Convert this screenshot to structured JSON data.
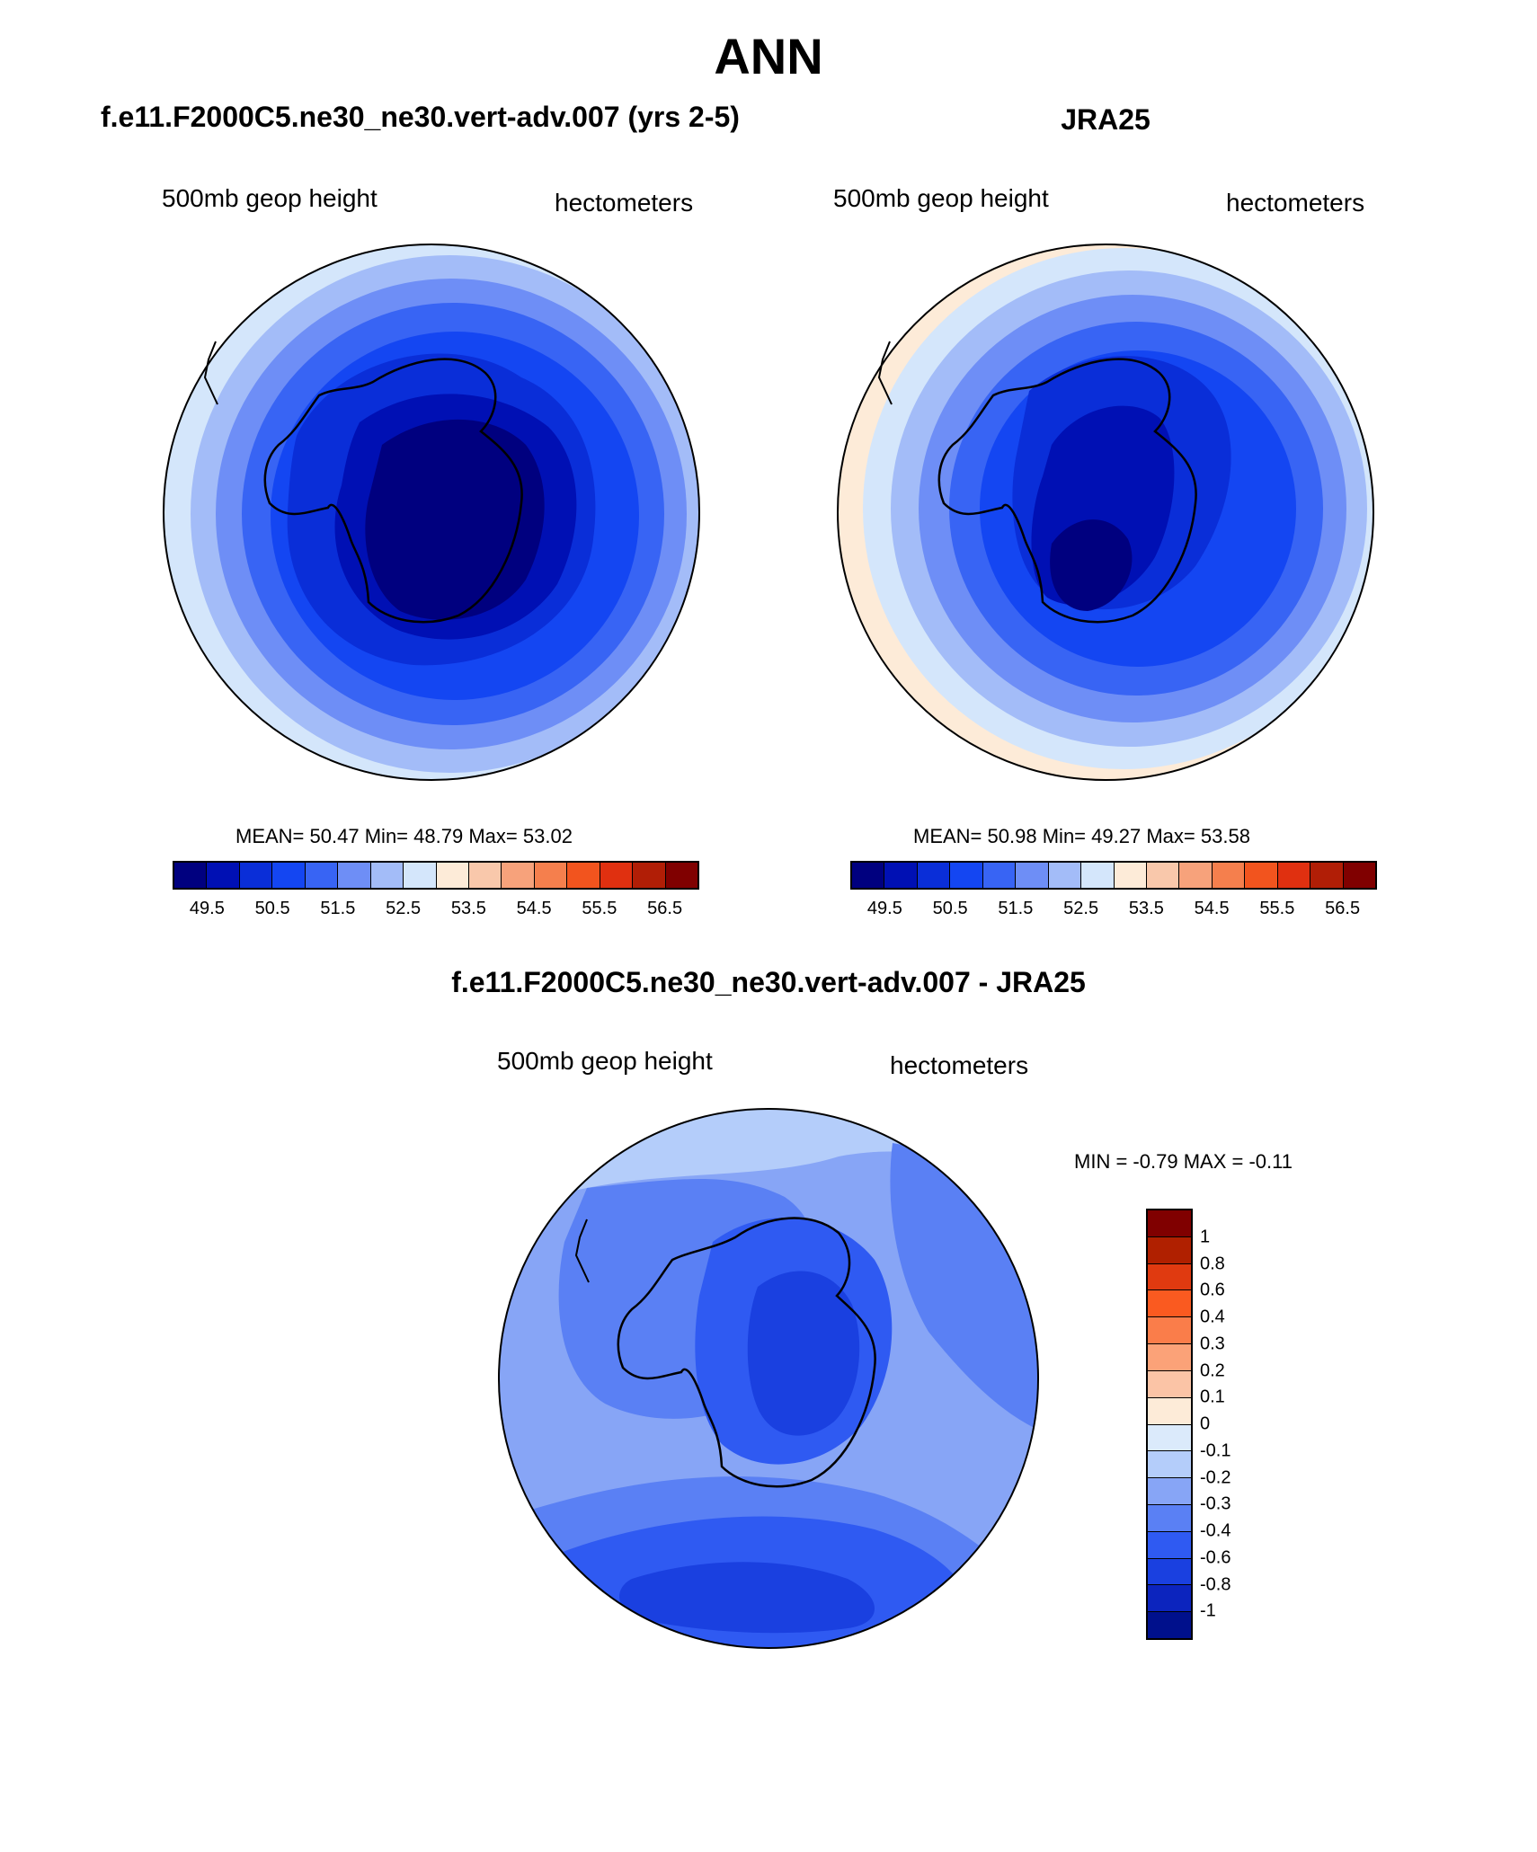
{
  "title": "ANN",
  "panels": {
    "left": {
      "title": "f.e11.F2000C5.ne30_ne30.vert-adv.007 (yrs 2-5)",
      "variable": "500mb geop height",
      "units": "hectometers",
      "stats": {
        "mean_label": "MEAN=",
        "mean": "50.47",
        "min_label": "Min=",
        "min": "48.79",
        "max_label": "Max=",
        "max": "53.02"
      }
    },
    "right": {
      "title": "JRA25",
      "variable": "500mb geop height",
      "units": "hectometers",
      "stats": {
        "mean_label": "MEAN=",
        "mean": "50.98",
        "min_label": "Min=",
        "min": "49.27",
        "max_label": "Max=",
        "max": "53.58"
      }
    },
    "diff": {
      "title": "f.e11.F2000C5.ne30_ne30.vert-adv.007 - JRA25",
      "variable": "500mb geop height",
      "units": "hectometers",
      "stats": {
        "min_label": "MIN =",
        "min": "-0.79",
        "max_label": "MAX =",
        "max": "-0.11"
      }
    }
  },
  "colorbars": {
    "horizontal": {
      "colors": [
        "#00007f",
        "#0010b4",
        "#0a2ed8",
        "#1446f2",
        "#3864f4",
        "#6e8ef6",
        "#a3bcf8",
        "#d4e6fb",
        "#fdebd8",
        "#f9c8ab",
        "#f7a27b",
        "#f57f4d",
        "#f2541e",
        "#e03010",
        "#b11e06",
        "#800000"
      ],
      "ticks": [
        "49.5",
        "50.5",
        "51.5",
        "52.5",
        "53.5",
        "54.5",
        "55.5",
        "56.5"
      ]
    },
    "vertical": {
      "colors": [
        "#800000",
        "#b02000",
        "#e03a10",
        "#fa5a20",
        "#fa7d4a",
        "#fba278",
        "#fbc4a6",
        "#fdebd8",
        "#dbeafb",
        "#b4cdfa",
        "#87a5f6",
        "#5a80f4",
        "#2f5af2",
        "#1a40e0",
        "#0c24be",
        "#00108c"
      ],
      "ticks": [
        "1",
        "0.8",
        "0.6",
        "0.4",
        "0.3",
        "0.2",
        "0.1",
        "0",
        "-0.1",
        "-0.2",
        "-0.3",
        "-0.4",
        "-0.6",
        "-0.8",
        "-1"
      ]
    }
  }
}
